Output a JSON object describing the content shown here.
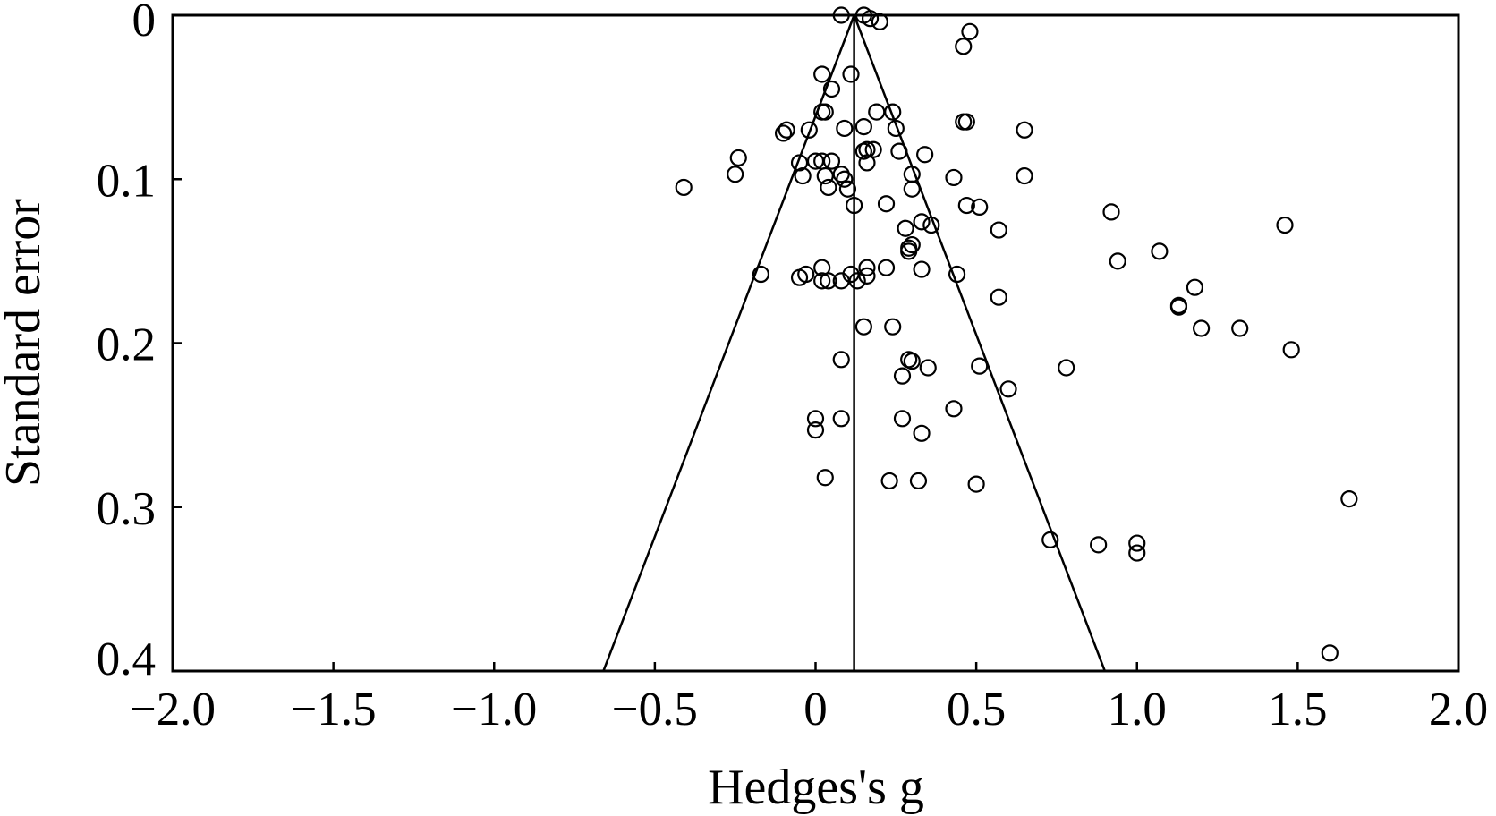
{
  "chart_data": {
    "type": "scatter",
    "title": "",
    "xlabel": "Hedges's g",
    "ylabel": "Standard error",
    "xlim": [
      -2.0,
      2.0
    ],
    "ylim": [
      0,
      0.4
    ],
    "y_inverted": true,
    "grid": false,
    "legend": "none",
    "x_ticks": [
      {
        "value": -2.0,
        "label": "−2.0"
      },
      {
        "value": -1.5,
        "label": "−1.5"
      },
      {
        "value": -1.0,
        "label": "−1.0"
      },
      {
        "value": -0.5,
        "label": "−0.5"
      },
      {
        "value": 0,
        "label": "0"
      },
      {
        "value": 0.5,
        "label": "0.5"
      },
      {
        "value": 1.0,
        "label": "1.0"
      },
      {
        "value": 1.5,
        "label": "1.5"
      },
      {
        "value": 2.0,
        "label": "2.0"
      }
    ],
    "y_ticks": [
      {
        "value": 0,
        "label": "0"
      },
      {
        "value": 0.1,
        "label": "0.1"
      },
      {
        "value": 0.2,
        "label": "0.2"
      },
      {
        "value": 0.3,
        "label": "0.3"
      },
      {
        "value": 0.4,
        "label": "0.4"
      }
    ],
    "pooled_effect": 0.12,
    "funnel": {
      "apex": [
        0.12,
        0
      ],
      "base_left": [
        -0.66,
        0.4
      ],
      "base_right": [
        0.9,
        0.4
      ]
    },
    "colors": {
      "ink": "#000000",
      "background": "#ffffff"
    },
    "points": [
      [
        0.08,
        0.0
      ],
      [
        0.15,
        0.0
      ],
      [
        0.17,
        0.002
      ],
      [
        0.2,
        0.004
      ],
      [
        0.48,
        0.01
      ],
      [
        0.46,
        0.019
      ],
      [
        0.02,
        0.036
      ],
      [
        0.11,
        0.036
      ],
      [
        0.05,
        0.045
      ],
      [
        0.02,
        0.059
      ],
      [
        0.03,
        0.059
      ],
      [
        0.19,
        0.059
      ],
      [
        0.24,
        0.059
      ],
      [
        0.46,
        0.065
      ],
      [
        0.47,
        0.065
      ],
      [
        -0.09,
        0.07
      ],
      [
        -0.1,
        0.072
      ],
      [
        -0.02,
        0.07
      ],
      [
        0.09,
        0.069
      ],
      [
        0.15,
        0.068
      ],
      [
        0.25,
        0.069
      ],
      [
        0.65,
        0.07
      ],
      [
        0.15,
        0.083
      ],
      [
        0.16,
        0.082
      ],
      [
        0.18,
        0.082
      ],
      [
        0.26,
        0.083
      ],
      [
        0.34,
        0.085
      ],
      [
        -0.24,
        0.087
      ],
      [
        -0.05,
        0.09
      ],
      [
        0.0,
        0.089
      ],
      [
        0.02,
        0.089
      ],
      [
        0.05,
        0.089
      ],
      [
        0.16,
        0.09
      ],
      [
        -0.25,
        0.097
      ],
      [
        -0.04,
        0.098
      ],
      [
        0.03,
        0.098
      ],
      [
        0.08,
        0.097
      ],
      [
        0.09,
        0.1
      ],
      [
        0.3,
        0.097
      ],
      [
        0.43,
        0.099
      ],
      [
        0.65,
        0.098
      ],
      [
        -0.41,
        0.105
      ],
      [
        0.04,
        0.105
      ],
      [
        0.1,
        0.106
      ],
      [
        0.3,
        0.106
      ],
      [
        0.12,
        0.116
      ],
      [
        0.22,
        0.115
      ],
      [
        0.47,
        0.116
      ],
      [
        0.51,
        0.117
      ],
      [
        0.92,
        0.12
      ],
      [
        0.33,
        0.126
      ],
      [
        0.36,
        0.128
      ],
      [
        0.28,
        0.13
      ],
      [
        0.57,
        0.131
      ],
      [
        1.46,
        0.128
      ],
      [
        0.3,
        0.14
      ],
      [
        0.29,
        0.142
      ],
      [
        0.29,
        0.144
      ],
      [
        1.07,
        0.144
      ],
      [
        0.94,
        0.15
      ],
      [
        0.02,
        0.154
      ],
      [
        0.16,
        0.154
      ],
      [
        0.22,
        0.154
      ],
      [
        0.33,
        0.155
      ],
      [
        -0.17,
        0.158
      ],
      [
        0.11,
        0.158
      ],
      [
        0.16,
        0.159
      ],
      [
        0.44,
        0.158
      ],
      [
        -0.05,
        0.16
      ],
      [
        -0.03,
        0.158
      ],
      [
        0.02,
        0.162
      ],
      [
        0.04,
        0.162
      ],
      [
        0.08,
        0.162
      ],
      [
        0.13,
        0.162
      ],
      [
        1.18,
        0.166
      ],
      [
        0.57,
        0.172
      ],
      [
        1.13,
        0.177
      ],
      [
        1.13,
        0.178
      ],
      [
        0.15,
        0.19
      ],
      [
        0.24,
        0.19
      ],
      [
        1.2,
        0.191
      ],
      [
        1.32,
        0.191
      ],
      [
        1.48,
        0.204
      ],
      [
        0.08,
        0.21
      ],
      [
        0.29,
        0.21
      ],
      [
        0.3,
        0.211
      ],
      [
        0.35,
        0.215
      ],
      [
        0.51,
        0.214
      ],
      [
        0.78,
        0.215
      ],
      [
        0.27,
        0.22
      ],
      [
        0.6,
        0.228
      ],
      [
        0.43,
        0.24
      ],
      [
        0.0,
        0.246
      ],
      [
        0.08,
        0.246
      ],
      [
        0.27,
        0.246
      ],
      [
        0.0,
        0.253
      ],
      [
        0.33,
        0.255
      ],
      [
        0.03,
        0.282
      ],
      [
        0.23,
        0.284
      ],
      [
        0.32,
        0.284
      ],
      [
        0.5,
        0.286
      ],
      [
        1.66,
        0.295
      ],
      [
        0.73,
        0.32
      ],
      [
        0.88,
        0.323
      ],
      [
        1.0,
        0.322
      ],
      [
        1.0,
        0.328
      ],
      [
        1.6,
        0.389
      ]
    ]
  }
}
